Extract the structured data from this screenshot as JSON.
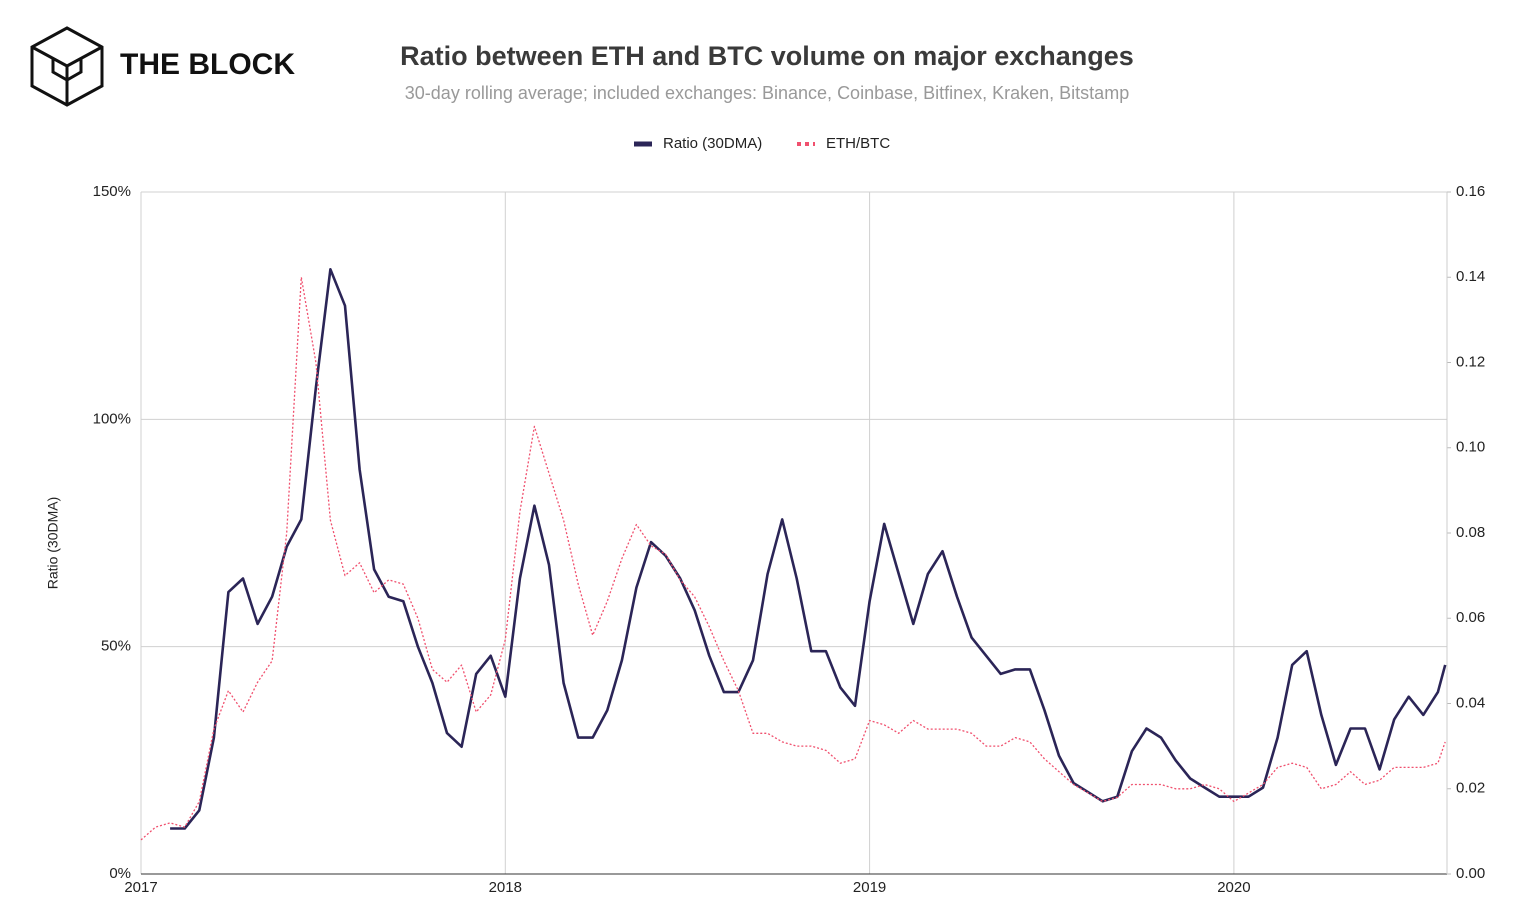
{
  "brand": "THE BLOCK",
  "chart_data": {
    "type": "line",
    "title": "Ratio between ETH and BTC volume on major exchanges",
    "subtitle": "30-day rolling average; included exchanges: Binance, Coinbase, Bitfinex, Kraken, Bitstamp",
    "y_label": "Ratio (30DMA)",
    "x": [
      2017,
      2017.04,
      2017.08,
      2017.12,
      2017.16,
      2017.2,
      2017.24,
      2017.28,
      2017.32,
      2017.36,
      2017.4,
      2017.44,
      2017.48,
      2017.52,
      2017.56,
      2017.6,
      2017.64,
      2017.68,
      2017.72,
      2017.76,
      2017.8,
      2017.84,
      2017.88,
      2017.92,
      2017.96,
      2018,
      2018.04,
      2018.08,
      2018.12,
      2018.16,
      2018.2,
      2018.24,
      2018.28,
      2018.32,
      2018.36,
      2018.4,
      2018.44,
      2018.48,
      2018.52,
      2018.56,
      2018.6,
      2018.64,
      2018.68,
      2018.72,
      2018.76,
      2018.8,
      2018.84,
      2018.88,
      2018.92,
      2018.96,
      2019,
      2019.04,
      2019.08,
      2019.12,
      2019.16,
      2019.2,
      2019.24,
      2019.28,
      2019.32,
      2019.36,
      2019.4,
      2019.44,
      2019.48,
      2019.52,
      2019.56,
      2019.6,
      2019.64,
      2019.68,
      2019.72,
      2019.76,
      2019.8,
      2019.84,
      2019.88,
      2019.92,
      2019.96,
      2020,
      2020.04,
      2020.08,
      2020.12,
      2020.16,
      2020.2,
      2020.24,
      2020.28,
      2020.32,
      2020.36,
      2020.4,
      2020.44,
      2020.48,
      2020.52,
      2020.56,
      2020.58
    ],
    "series": [
      {
        "name": "Ratio (30DMA)",
        "color": "#2b2557",
        "values": [
          null,
          null,
          10,
          10,
          14,
          30,
          62,
          65,
          55,
          61,
          72,
          78,
          107,
          133,
          125,
          89,
          67,
          61,
          60,
          50,
          42,
          31,
          28,
          44,
          48,
          39,
          65,
          81,
          68,
          42,
          30,
          30,
          36,
          47,
          63,
          73,
          70,
          65,
          58,
          48,
          40,
          40,
          47,
          66,
          78,
          65,
          49,
          49,
          41,
          37,
          60,
          77,
          66,
          55,
          66,
          71,
          61,
          52,
          48,
          44,
          45,
          45,
          36,
          26,
          20,
          18,
          16,
          17,
          27,
          32,
          30,
          25,
          21,
          19,
          17,
          17,
          17,
          19,
          30,
          46,
          49,
          35,
          24,
          32,
          32,
          23,
          34,
          39,
          35,
          40,
          46
        ]
      },
      {
        "name": "ETH/BTC",
        "color": "#f0506e",
        "axis": "y2",
        "values": [
          0.008,
          0.011,
          0.012,
          0.011,
          0.017,
          0.034,
          0.043,
          0.038,
          0.045,
          0.05,
          0.08,
          0.14,
          0.12,
          0.083,
          0.07,
          0.073,
          0.066,
          0.069,
          0.068,
          0.06,
          0.048,
          0.045,
          0.049,
          0.038,
          0.042,
          0.055,
          0.085,
          0.105,
          0.094,
          0.083,
          0.068,
          0.056,
          0.064,
          0.074,
          0.082,
          0.077,
          0.075,
          0.069,
          0.065,
          0.058,
          0.05,
          0.043,
          0.033,
          0.033,
          0.031,
          0.03,
          0.03,
          0.029,
          0.026,
          0.027,
          0.036,
          0.035,
          0.033,
          0.036,
          0.034,
          0.034,
          0.034,
          0.033,
          0.03,
          0.03,
          0.032,
          0.031,
          0.027,
          0.024,
          0.021,
          0.019,
          0.017,
          0.018,
          0.021,
          0.021,
          0.021,
          0.02,
          0.02,
          0.021,
          0.02,
          0.017,
          0.019,
          0.021,
          0.025,
          0.026,
          0.025,
          0.02,
          0.021,
          0.024,
          0.021,
          0.022,
          0.025,
          0.025,
          0.025,
          0.026,
          0.031
        ]
      }
    ],
    "xlim": [
      2017,
      2020.585
    ],
    "xticks": [
      2017,
      2018,
      2019,
      2020
    ],
    "ylim": [
      0,
      150
    ],
    "yticks": [
      {
        "value": 0,
        "label": "0%"
      },
      {
        "value": 50,
        "label": "50%"
      },
      {
        "value": 100,
        "label": "100%"
      },
      {
        "value": 150,
        "label": "150%"
      }
    ],
    "y2lim": [
      0,
      0.16
    ],
    "y2ticks": [
      {
        "value": 0,
        "label": "0.00"
      },
      {
        "value": 0.02,
        "label": "0.02"
      },
      {
        "value": 0.04,
        "label": "0.04"
      },
      {
        "value": 0.06,
        "label": "0.06"
      },
      {
        "value": 0.08,
        "label": "0.08"
      },
      {
        "value": 0.1,
        "label": "0.10"
      },
      {
        "value": 0.12,
        "label": "0.12"
      },
      {
        "value": 0.14,
        "label": "0.14"
      },
      {
        "value": 0.16,
        "label": "0.16"
      }
    ],
    "grid": true,
    "legend": "top"
  }
}
